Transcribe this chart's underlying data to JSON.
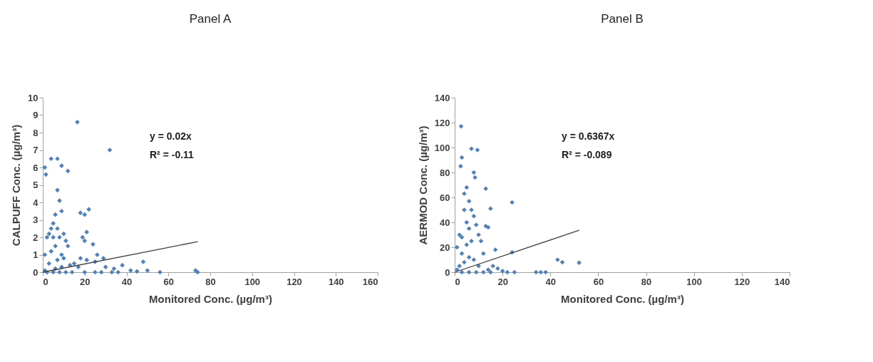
{
  "chart_data": [
    {
      "type": "scatter",
      "title": "Panel A",
      "xlabel": "Monitored Conc. (µg/m³)",
      "ylabel": "CALPUFF Conc. (µg/m³)",
      "xlim": [
        0,
        160
      ],
      "xticks": [
        0,
        20,
        40,
        60,
        80,
        100,
        120,
        140,
        160
      ],
      "ylim": [
        0,
        10
      ],
      "yticks": [
        0,
        1,
        2,
        3,
        4,
        5,
        6,
        7,
        8,
        9,
        10
      ],
      "grid": false,
      "series": [
        {
          "marker": "diamond",
          "color": "#4f81bd",
          "x": [
            1,
            1.5,
            1,
            4,
            7,
            9,
            12,
            7,
            8,
            9,
            6,
            5,
            4,
            3,
            2,
            5,
            7,
            8,
            10,
            11,
            6,
            4,
            9,
            12,
            10,
            3,
            7,
            13,
            18,
            20,
            22,
            21,
            19,
            20,
            24,
            26,
            25,
            29,
            32,
            16.5,
            18,
            21,
            15,
            17,
            30,
            34,
            38,
            42,
            45,
            48,
            50,
            56,
            73,
            74,
            2,
            5,
            8,
            11,
            14,
            20,
            25,
            28,
            33,
            36,
            1,
            6,
            9
          ],
          "values": [
            6.0,
            5.6,
            1.0,
            6.5,
            6.5,
            6.1,
            5.8,
            4.7,
            4.1,
            3.5,
            3.3,
            2.8,
            2.5,
            2.2,
            2.0,
            2.0,
            2.5,
            2.0,
            2.2,
            1.8,
            1.5,
            1.2,
            1.0,
            1.5,
            0.8,
            0.5,
            0.7,
            0.4,
            3.4,
            3.3,
            3.6,
            2.3,
            2.0,
            1.8,
            1.6,
            1.0,
            0.6,
            0.8,
            7.0,
            8.6,
            0.8,
            0.7,
            0.5,
            0.3,
            0.3,
            0.2,
            0.4,
            0.1,
            0.05,
            0.6,
            0.1,
            0.0,
            0.1,
            0.0,
            0,
            0,
            0,
            0,
            0,
            0,
            0,
            0,
            0,
            0,
            0.1,
            0.2,
            0.3
          ]
        },
        {
          "type": "line",
          "marker": "none",
          "color": "#404040",
          "x": [
            0,
            74
          ],
          "values": [
            0,
            1.75
          ]
        }
      ],
      "annotations": [
        "y = 0.02x",
        "R² = -0.11"
      ]
    },
    {
      "type": "scatter",
      "title": "Panel B",
      "xlabel": "Monitored Conc. (µg/m³)",
      "ylabel": "AERMOD Conc. (µg/m³)",
      "xlim": [
        0,
        140
      ],
      "xticks": [
        0,
        20,
        40,
        60,
        80,
        100,
        120,
        140
      ],
      "ylim": [
        0,
        140
      ],
      "yticks": [
        0,
        20,
        40,
        60,
        80,
        100,
        120,
        140
      ],
      "grid": false,
      "series": [
        {
          "marker": "diamond",
          "color": "#4f81bd",
          "x": [
            2.7,
            3,
            2.5,
            7,
            9.5,
            8,
            8.5,
            13,
            5,
            4,
            6,
            7,
            4,
            15,
            13,
            14,
            24,
            17,
            24,
            2,
            1,
            3,
            5,
            6,
            8,
            9,
            10,
            3,
            5,
            7,
            11,
            12,
            4,
            6,
            8,
            10,
            2,
            1,
            3,
            6,
            9,
            12,
            15,
            18,
            20,
            22,
            25,
            34,
            36,
            38,
            43,
            45,
            52,
            16,
            14
          ],
          "values": [
            117,
            92,
            85,
            99,
            98,
            80,
            76,
            67,
            68,
            63,
            57,
            50,
            50,
            51,
            37,
            36,
            56,
            18,
            16,
            30,
            20,
            28,
            40,
            35,
            45,
            38,
            30,
            15,
            22,
            25,
            25,
            15,
            8,
            12,
            10,
            5,
            5,
            2,
            0,
            0,
            0,
            0,
            0,
            3,
            1,
            0,
            0,
            0,
            0,
            0,
            10,
            8,
            7.6,
            5,
            2
          ]
        },
        {
          "type": "line",
          "marker": "none",
          "color": "#404040",
          "x": [
            0,
            52
          ],
          "values": [
            0,
            33.6
          ]
        }
      ],
      "annotations": [
        "y = 0.6367x",
        "R² = -0.089"
      ]
    }
  ]
}
